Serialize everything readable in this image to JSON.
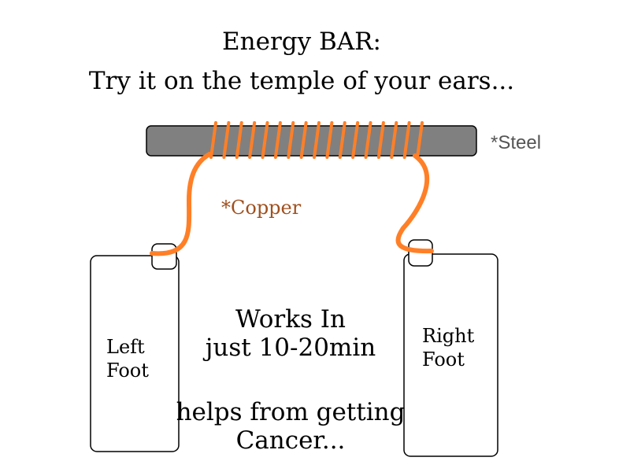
{
  "title": {
    "line1": "Energy BAR:",
    "line2": "Try it on the temple of your ears..."
  },
  "labels": {
    "steel": "*Steel",
    "copper": "*Copper",
    "left_foot_line1": "Left",
    "left_foot_line2": "Foot",
    "right_foot_line1": "Right",
    "right_foot_line2": "Foot"
  },
  "body_text": {
    "works_line1": "Works In",
    "works_line2": "just 10-20min",
    "helps_line1": "helps from getting",
    "helps_line2": "Cancer..."
  },
  "colors": {
    "copper_wire": "#ff7f27",
    "steel_bar": "#808080",
    "steel_label": "#555555",
    "copper_label": "#a0501e"
  }
}
